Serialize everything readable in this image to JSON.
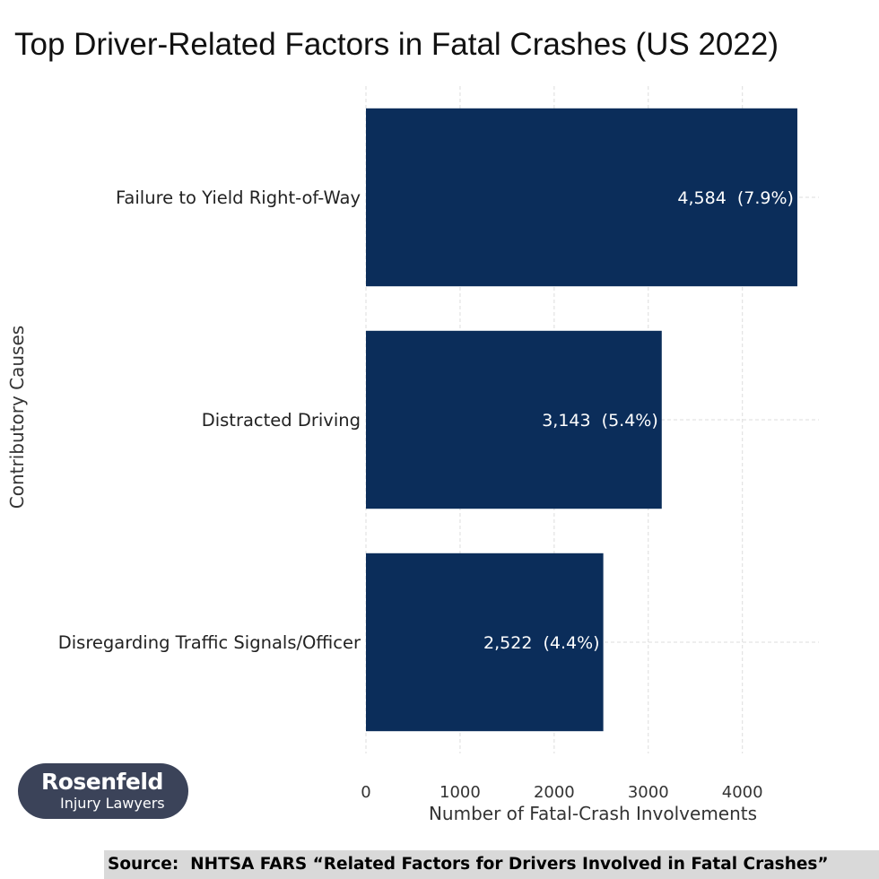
{
  "chart_data": {
    "type": "bar",
    "orientation": "horizontal",
    "title": "Top Driver-Related Factors in Fatal Crashes (US 2022)",
    "xlabel": "Number of Fatal-Crash Involvements",
    "ylabel": "Contributory Causes",
    "categories": [
      "Failure to Yield Right-of-Way",
      "Distracted Driving",
      "Disregarding Traffic Signals/Officer"
    ],
    "values": [
      4584,
      3143,
      2522
    ],
    "data_labels": [
      "4,584  (7.9%)",
      "3,143  (5.4%)",
      "2,522  (4.4%)"
    ],
    "xticks": [
      "0",
      "1000",
      "2000",
      "3000",
      "4000"
    ],
    "xlim": [
      0,
      4813
    ],
    "grid": true,
    "bar_color": "#0b2d5a"
  },
  "branding": {
    "logo_name": "Rosenfeld",
    "logo_sub": "Injury Lawyers"
  },
  "source": {
    "text": "Source:  NHTSA FARS “Related Factors for Drivers Involved in Fatal Crashes”"
  }
}
